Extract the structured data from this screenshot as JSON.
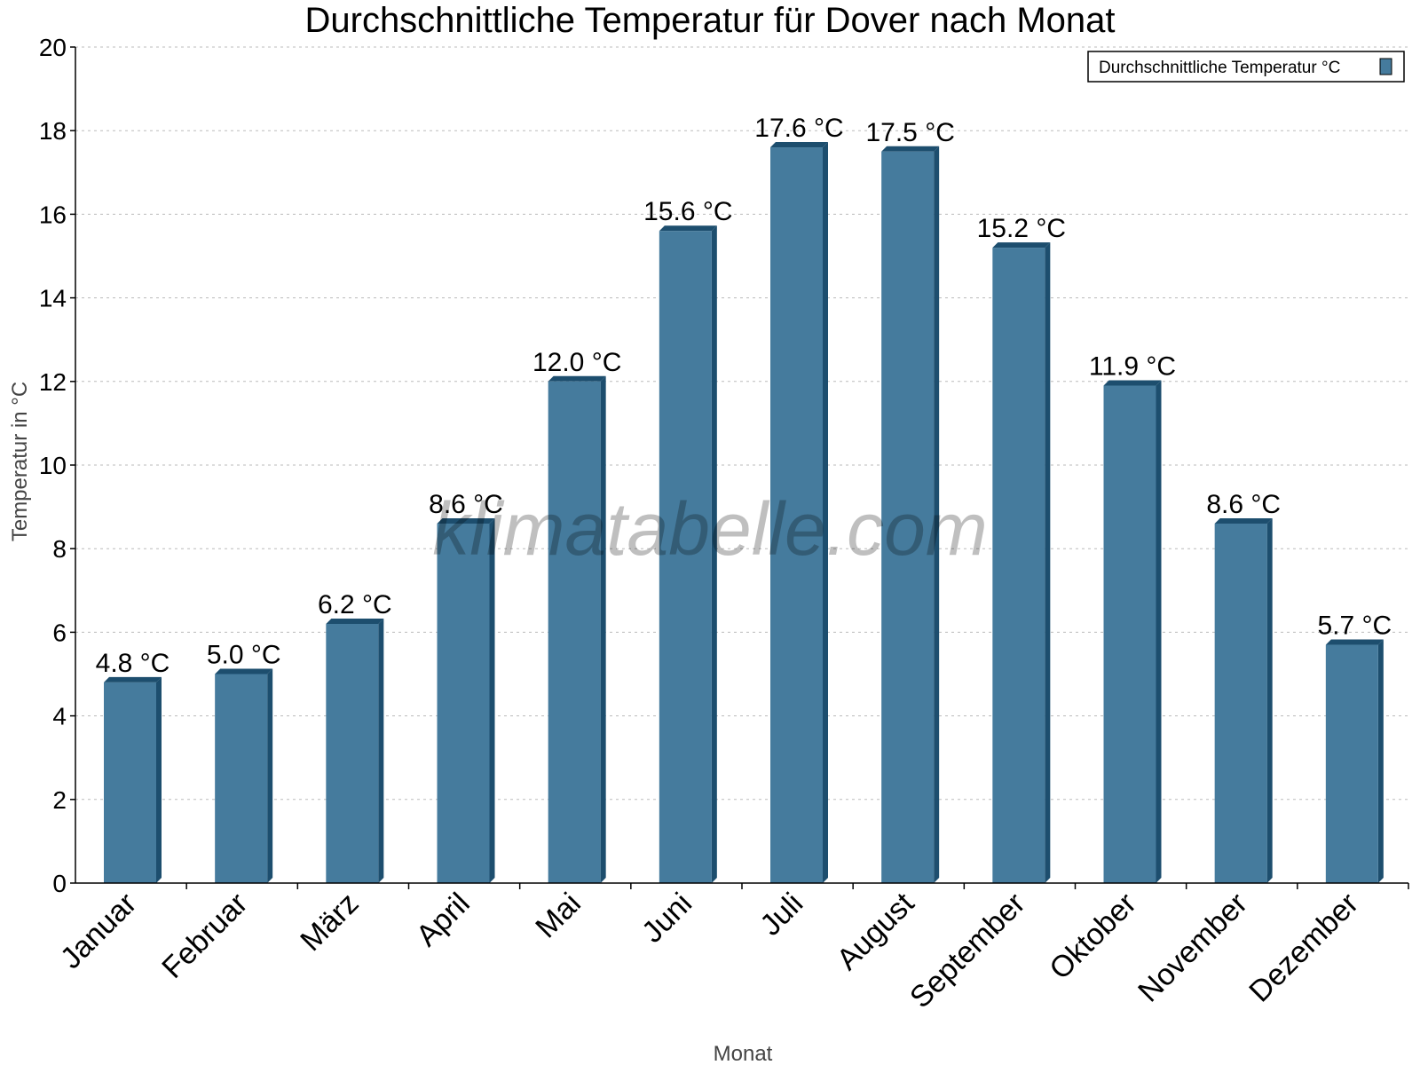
{
  "chart_data": {
    "type": "bar",
    "title": "Durchschnittliche Temperatur für Dover nach Monat",
    "xlabel": "Monat",
    "ylabel": "Temperatur in °C",
    "categories": [
      "Januar",
      "Februar",
      "März",
      "April",
      "Mai",
      "Juni",
      "Juli",
      "August",
      "September",
      "Oktober",
      "November",
      "Dezember"
    ],
    "series": [
      {
        "name": "Durchschnittliche Temperatur °C",
        "values": [
          4.8,
          5.0,
          6.2,
          8.6,
          12.0,
          15.6,
          17.6,
          17.5,
          15.2,
          11.9,
          8.6,
          5.7
        ]
      }
    ],
    "data_labels": [
      "4.8 °C",
      "5.0 °C",
      "6.2 °C",
      "8.6 °C",
      "12.0 °C",
      "15.6 °C",
      "17.6 °C",
      "17.5 °C",
      "15.2 °C",
      "11.9 °C",
      "8.6 °C",
      "5.7 °C"
    ],
    "ylim": [
      0,
      20
    ],
    "yticks": [
      0,
      2,
      4,
      6,
      8,
      10,
      12,
      14,
      16,
      18,
      20
    ],
    "grid": true,
    "legend": "top-right",
    "colors": {
      "bar": "#457b9d",
      "bar_dark": "#1d4e6e"
    }
  },
  "watermark": "klimatabelle.com"
}
